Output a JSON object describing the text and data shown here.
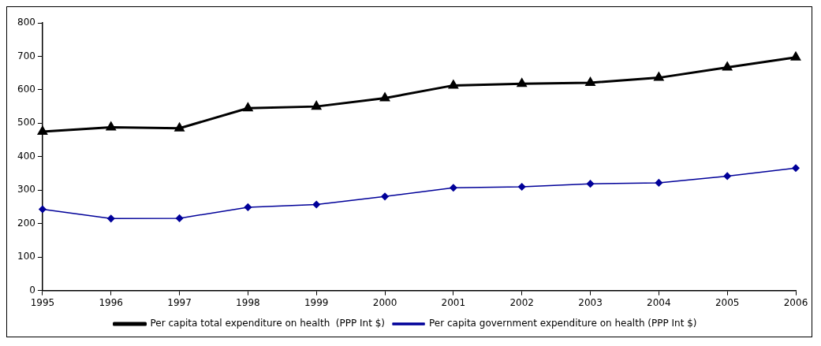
{
  "chart_data": {
    "type": "line",
    "categories": [
      "1995",
      "1996",
      "1997",
      "1998",
      "1999",
      "2000",
      "2001",
      "2002",
      "2003",
      "2004",
      "2005",
      "2006"
    ],
    "series": [
      {
        "name": "Per capita total expenditure on health  (PPP Int $)",
        "color": "#000000",
        "marker": "triangle",
        "values": [
          475,
          488,
          485,
          545,
          550,
          575,
          613,
          618,
          621,
          636,
          667,
          697
        ]
      },
      {
        "name": "Per capita government expenditure on health (PPP Int $)",
        "color": "#000099",
        "marker": "diamond",
        "values": [
          243,
          215,
          216,
          249,
          257,
          281,
          307,
          310,
          319,
          322,
          342,
          366
        ]
      }
    ],
    "ylim": [
      0,
      800
    ],
    "yticks": [
      0,
      100,
      200,
      300,
      400,
      500,
      600,
      700,
      800
    ],
    "grid": false,
    "legend": "bottom"
  }
}
